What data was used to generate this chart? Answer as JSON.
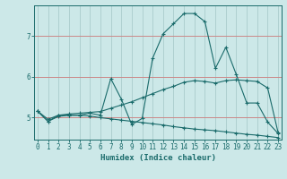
{
  "xlabel": "Humidex (Indice chaleur)",
  "bg_color": "#cce8e8",
  "grid_color": "#aacccc",
  "line_color": "#1a6b6b",
  "red_line_color": "#cc8888",
  "x_ticks": [
    0,
    1,
    2,
    3,
    4,
    5,
    6,
    7,
    8,
    9,
    10,
    11,
    12,
    13,
    14,
    15,
    16,
    17,
    18,
    19,
    20,
    21,
    22,
    23
  ],
  "y_ticks": [
    5,
    6,
    7
  ],
  "xlim": [
    -0.3,
    23.3
  ],
  "ylim": [
    4.45,
    7.75
  ],
  "line1_x": [
    0,
    1,
    2,
    3,
    4,
    5,
    6,
    7,
    8,
    9,
    10,
    11,
    12,
    13,
    14,
    15,
    16,
    17,
    18,
    19,
    20,
    21,
    22,
    23
  ],
  "line1_y": [
    5.15,
    4.9,
    5.05,
    5.05,
    5.05,
    5.1,
    5.05,
    5.95,
    5.45,
    4.82,
    4.97,
    6.45,
    7.05,
    7.3,
    7.55,
    7.55,
    7.35,
    6.2,
    6.72,
    6.05,
    5.35,
    5.35,
    4.88,
    4.6
  ],
  "line2_x": [
    0,
    1,
    2,
    3,
    4,
    5,
    6,
    7,
    8,
    9,
    10,
    11,
    12,
    13,
    14,
    15,
    16,
    17,
    18,
    19,
    20,
    21,
    22,
    23
  ],
  "line2_y": [
    5.15,
    4.95,
    5.05,
    5.08,
    5.1,
    5.12,
    5.14,
    5.22,
    5.3,
    5.38,
    5.48,
    5.58,
    5.68,
    5.76,
    5.86,
    5.9,
    5.88,
    5.84,
    5.9,
    5.92,
    5.9,
    5.88,
    5.72,
    4.62
  ],
  "line3_x": [
    0,
    1,
    2,
    3,
    4,
    5,
    6,
    7,
    8,
    9,
    10,
    11,
    12,
    13,
    14,
    15,
    16,
    17,
    18,
    19,
    20,
    21,
    22,
    23
  ],
  "line3_y": [
    5.15,
    4.9,
    5.02,
    5.05,
    5.05,
    5.03,
    4.99,
    4.96,
    4.93,
    4.9,
    4.87,
    4.84,
    4.81,
    4.77,
    4.74,
    4.71,
    4.69,
    4.67,
    4.64,
    4.61,
    4.58,
    4.56,
    4.53,
    4.5
  ]
}
